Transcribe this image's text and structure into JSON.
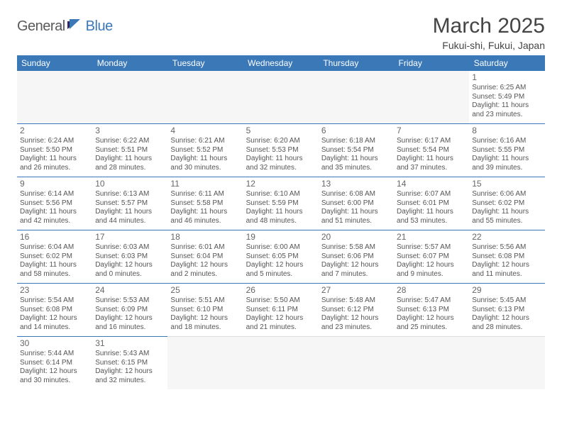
{
  "logo": {
    "text1": "General",
    "text2": "Blue"
  },
  "title": "March 2025",
  "location": "Fukui-shi, Fukui, Japan",
  "colors": {
    "header_bg": "#3a78b8",
    "header_text": "#ffffff",
    "border": "#3a78b8",
    "text": "#555555",
    "daynum": "#666666",
    "empty_bg": "#f6f6f6"
  },
  "typography": {
    "title_fontsize": 30,
    "location_fontsize": 14,
    "header_fontsize": 12,
    "cell_fontsize": 10,
    "daynum_fontsize": 12
  },
  "dayHeaders": [
    "Sunday",
    "Monday",
    "Tuesday",
    "Wednesday",
    "Thursday",
    "Friday",
    "Saturday"
  ],
  "weeks": [
    [
      null,
      null,
      null,
      null,
      null,
      null,
      {
        "n": "1",
        "sr": "Sunrise: 6:25 AM",
        "ss": "Sunset: 5:49 PM",
        "dl": "Daylight: 11 hours and 23 minutes."
      }
    ],
    [
      {
        "n": "2",
        "sr": "Sunrise: 6:24 AM",
        "ss": "Sunset: 5:50 PM",
        "dl": "Daylight: 11 hours and 26 minutes."
      },
      {
        "n": "3",
        "sr": "Sunrise: 6:22 AM",
        "ss": "Sunset: 5:51 PM",
        "dl": "Daylight: 11 hours and 28 minutes."
      },
      {
        "n": "4",
        "sr": "Sunrise: 6:21 AM",
        "ss": "Sunset: 5:52 PM",
        "dl": "Daylight: 11 hours and 30 minutes."
      },
      {
        "n": "5",
        "sr": "Sunrise: 6:20 AM",
        "ss": "Sunset: 5:53 PM",
        "dl": "Daylight: 11 hours and 32 minutes."
      },
      {
        "n": "6",
        "sr": "Sunrise: 6:18 AM",
        "ss": "Sunset: 5:54 PM",
        "dl": "Daylight: 11 hours and 35 minutes."
      },
      {
        "n": "7",
        "sr": "Sunrise: 6:17 AM",
        "ss": "Sunset: 5:54 PM",
        "dl": "Daylight: 11 hours and 37 minutes."
      },
      {
        "n": "8",
        "sr": "Sunrise: 6:16 AM",
        "ss": "Sunset: 5:55 PM",
        "dl": "Daylight: 11 hours and 39 minutes."
      }
    ],
    [
      {
        "n": "9",
        "sr": "Sunrise: 6:14 AM",
        "ss": "Sunset: 5:56 PM",
        "dl": "Daylight: 11 hours and 42 minutes."
      },
      {
        "n": "10",
        "sr": "Sunrise: 6:13 AM",
        "ss": "Sunset: 5:57 PM",
        "dl": "Daylight: 11 hours and 44 minutes."
      },
      {
        "n": "11",
        "sr": "Sunrise: 6:11 AM",
        "ss": "Sunset: 5:58 PM",
        "dl": "Daylight: 11 hours and 46 minutes."
      },
      {
        "n": "12",
        "sr": "Sunrise: 6:10 AM",
        "ss": "Sunset: 5:59 PM",
        "dl": "Daylight: 11 hours and 48 minutes."
      },
      {
        "n": "13",
        "sr": "Sunrise: 6:08 AM",
        "ss": "Sunset: 6:00 PM",
        "dl": "Daylight: 11 hours and 51 minutes."
      },
      {
        "n": "14",
        "sr": "Sunrise: 6:07 AM",
        "ss": "Sunset: 6:01 PM",
        "dl": "Daylight: 11 hours and 53 minutes."
      },
      {
        "n": "15",
        "sr": "Sunrise: 6:06 AM",
        "ss": "Sunset: 6:02 PM",
        "dl": "Daylight: 11 hours and 55 minutes."
      }
    ],
    [
      {
        "n": "16",
        "sr": "Sunrise: 6:04 AM",
        "ss": "Sunset: 6:02 PM",
        "dl": "Daylight: 11 hours and 58 minutes."
      },
      {
        "n": "17",
        "sr": "Sunrise: 6:03 AM",
        "ss": "Sunset: 6:03 PM",
        "dl": "Daylight: 12 hours and 0 minutes."
      },
      {
        "n": "18",
        "sr": "Sunrise: 6:01 AM",
        "ss": "Sunset: 6:04 PM",
        "dl": "Daylight: 12 hours and 2 minutes."
      },
      {
        "n": "19",
        "sr": "Sunrise: 6:00 AM",
        "ss": "Sunset: 6:05 PM",
        "dl": "Daylight: 12 hours and 5 minutes."
      },
      {
        "n": "20",
        "sr": "Sunrise: 5:58 AM",
        "ss": "Sunset: 6:06 PM",
        "dl": "Daylight: 12 hours and 7 minutes."
      },
      {
        "n": "21",
        "sr": "Sunrise: 5:57 AM",
        "ss": "Sunset: 6:07 PM",
        "dl": "Daylight: 12 hours and 9 minutes."
      },
      {
        "n": "22",
        "sr": "Sunrise: 5:56 AM",
        "ss": "Sunset: 6:08 PM",
        "dl": "Daylight: 12 hours and 11 minutes."
      }
    ],
    [
      {
        "n": "23",
        "sr": "Sunrise: 5:54 AM",
        "ss": "Sunset: 6:08 PM",
        "dl": "Daylight: 12 hours and 14 minutes."
      },
      {
        "n": "24",
        "sr": "Sunrise: 5:53 AM",
        "ss": "Sunset: 6:09 PM",
        "dl": "Daylight: 12 hours and 16 minutes."
      },
      {
        "n": "25",
        "sr": "Sunrise: 5:51 AM",
        "ss": "Sunset: 6:10 PM",
        "dl": "Daylight: 12 hours and 18 minutes."
      },
      {
        "n": "26",
        "sr": "Sunrise: 5:50 AM",
        "ss": "Sunset: 6:11 PM",
        "dl": "Daylight: 12 hours and 21 minutes."
      },
      {
        "n": "27",
        "sr": "Sunrise: 5:48 AM",
        "ss": "Sunset: 6:12 PM",
        "dl": "Daylight: 12 hours and 23 minutes."
      },
      {
        "n": "28",
        "sr": "Sunrise: 5:47 AM",
        "ss": "Sunset: 6:13 PM",
        "dl": "Daylight: 12 hours and 25 minutes."
      },
      {
        "n": "29",
        "sr": "Sunrise: 5:45 AM",
        "ss": "Sunset: 6:13 PM",
        "dl": "Daylight: 12 hours and 28 minutes."
      }
    ],
    [
      {
        "n": "30",
        "sr": "Sunrise: 5:44 AM",
        "ss": "Sunset: 6:14 PM",
        "dl": "Daylight: 12 hours and 30 minutes."
      },
      {
        "n": "31",
        "sr": "Sunrise: 5:43 AM",
        "ss": "Sunset: 6:15 PM",
        "dl": "Daylight: 12 hours and 32 minutes."
      },
      null,
      null,
      null,
      null,
      null
    ]
  ]
}
